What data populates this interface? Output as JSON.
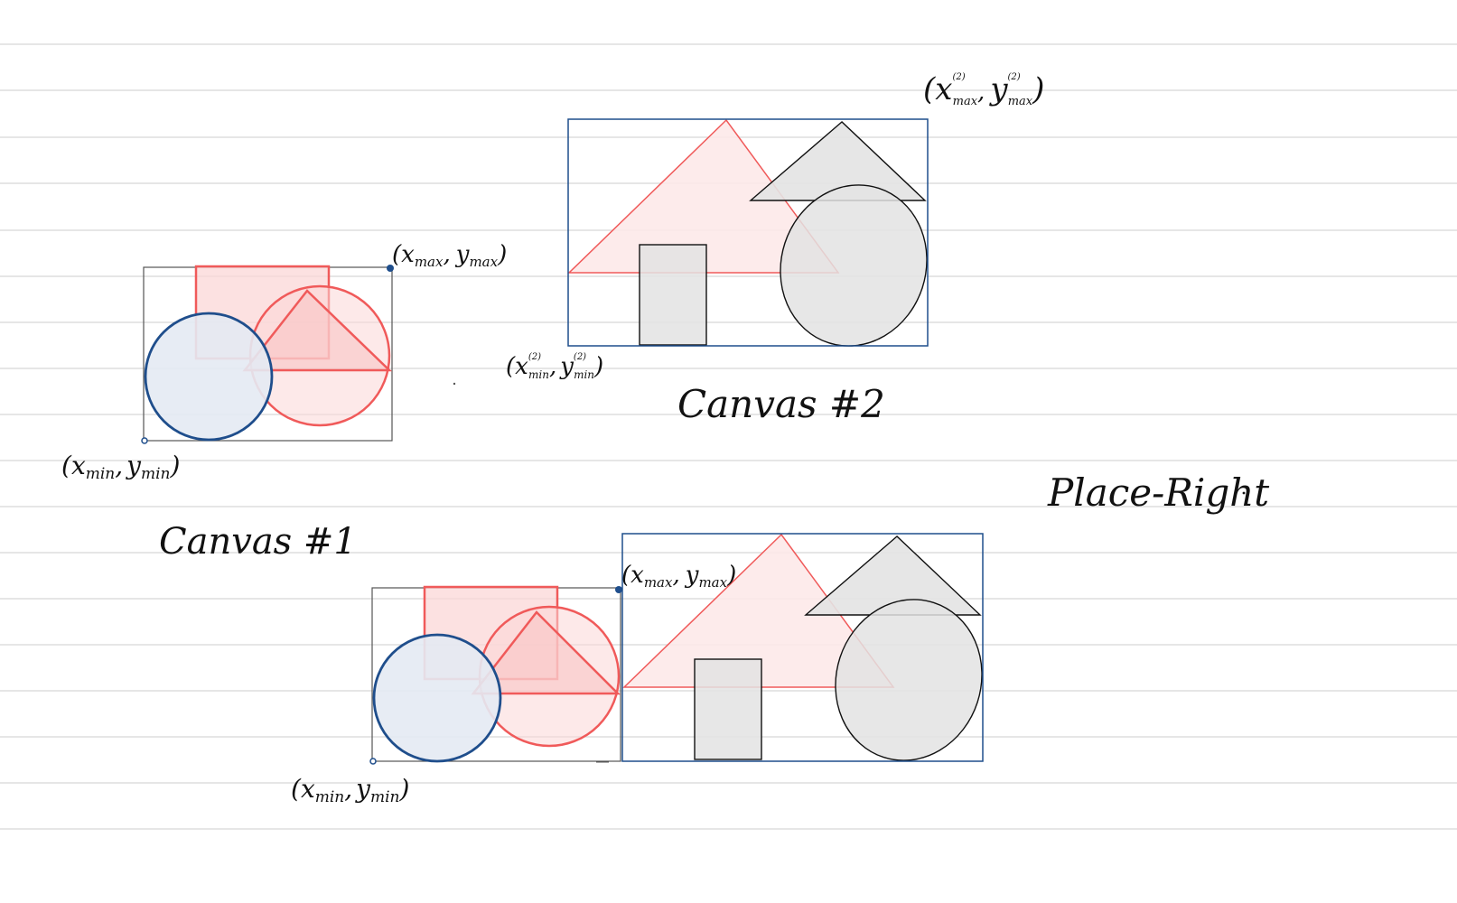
{
  "colors": {
    "ruling": "#d8d8d8",
    "blue_stroke": "#1f4e8c",
    "blue_fill": "#e4eaf3",
    "red_stroke": "#f05a5a",
    "red_fill": "#fbd7d7",
    "red_fill_light": "#fde9e9",
    "gray_fill": "#e3e3e3",
    "black_stroke": "#111111",
    "frame_gray": "#555555"
  },
  "labels": {
    "canvas1_title": "Canvas #1",
    "canvas2_title": "Canvas #2",
    "operation": "Place-Right",
    "top_left": {
      "max": {
        "open": "(",
        "x": "x",
        "x_sub": "max",
        "sep": ",",
        "y": "y",
        "y_sub": "max",
        "close": ")"
      },
      "min": {
        "open": "(",
        "x": "x",
        "x_sub": "min",
        "sep": ",",
        "y": "y",
        "y_sub": "min",
        "close": ")"
      }
    },
    "top_right": {
      "max": {
        "open": "(",
        "x": "x",
        "x_sub": "max",
        "x_sup": "(2)",
        "sep": ",",
        "y": "y",
        "y_sub": "max",
        "y_sup": "(2)",
        "close": ")"
      },
      "min": {
        "open": "(",
        "x": "x",
        "x_sub": "min",
        "x_sup": "(2)",
        "sep": ",",
        "y": "y",
        "y_sub": "min",
        "y_sup": "(2)",
        "close": ")"
      }
    },
    "bottom": {
      "max": {
        "open": "(",
        "x": "x",
        "x_sub": "max",
        "sep": ",",
        "y": "y",
        "y_sub": "max",
        "close": ")"
      },
      "min": {
        "open": "(",
        "x": "x",
        "x_sub": "min",
        "sep": ",",
        "y": "y",
        "y_sub": "min",
        "close": ")"
      }
    }
  }
}
